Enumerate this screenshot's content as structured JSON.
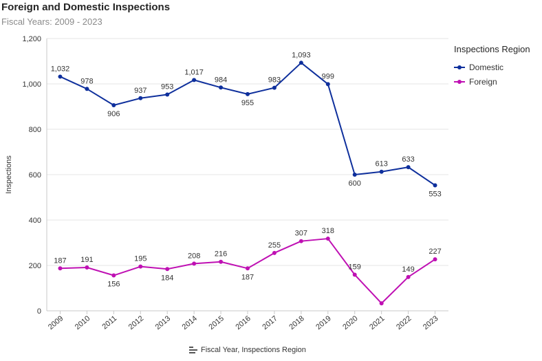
{
  "title": "Foreign and Domestic Inspections",
  "subtitle": "Fiscal Years: 2009 - 2023",
  "footer": {
    "label": "Fiscal Year, Inspections Region",
    "icon": "sort-fields-icon"
  },
  "legend": {
    "title": "Inspections Region"
  },
  "colors": {
    "domestic": "#0e2f9c",
    "foreign": "#bf10b3",
    "grid": "#e6e6e6",
    "axis": "#c8c8c8"
  },
  "chart_data": {
    "type": "line",
    "title": "Foreign and Domestic Inspections",
    "subtitle": "Fiscal Years: 2009 - 2023",
    "xlabel": "Fiscal Year, Inspections Region",
    "ylabel": "Inspections",
    "categories": [
      "2009",
      "2010",
      "2011",
      "2012",
      "2013",
      "2014",
      "2015",
      "2016",
      "2017",
      "2018",
      "2019",
      "2020",
      "2021",
      "2022",
      "2023"
    ],
    "ylim": [
      0,
      1200
    ],
    "yticks": [
      0,
      200,
      400,
      600,
      800,
      1000,
      1200
    ],
    "ytick_labels": [
      "0",
      "200",
      "400",
      "600",
      "800",
      "1,000",
      "1,200"
    ],
    "grid": true,
    "legend_position": "right",
    "series": [
      {
        "name": "Domestic",
        "color": "#0e2f9c",
        "values": [
          1032,
          978,
          906,
          937,
          953,
          1017,
          984,
          955,
          983,
          1093,
          999,
          600,
          613,
          633,
          553
        ],
        "labels": [
          "1,032",
          "978",
          "906",
          "937",
          "953",
          "1,017",
          "984",
          "955",
          "983",
          "1,093",
          "999",
          "600",
          "613",
          "633",
          "553"
        ]
      },
      {
        "name": "Foreign",
        "color": "#bf10b3",
        "values": [
          187,
          191,
          156,
          195,
          184,
          208,
          216,
          187,
          255,
          307,
          318,
          159,
          33,
          149,
          227
        ],
        "labels": [
          "187",
          "191",
          "156",
          "195",
          "184",
          "208",
          "216",
          "187",
          "255",
          "307",
          "318",
          "159",
          "",
          "149",
          "227"
        ]
      }
    ]
  }
}
